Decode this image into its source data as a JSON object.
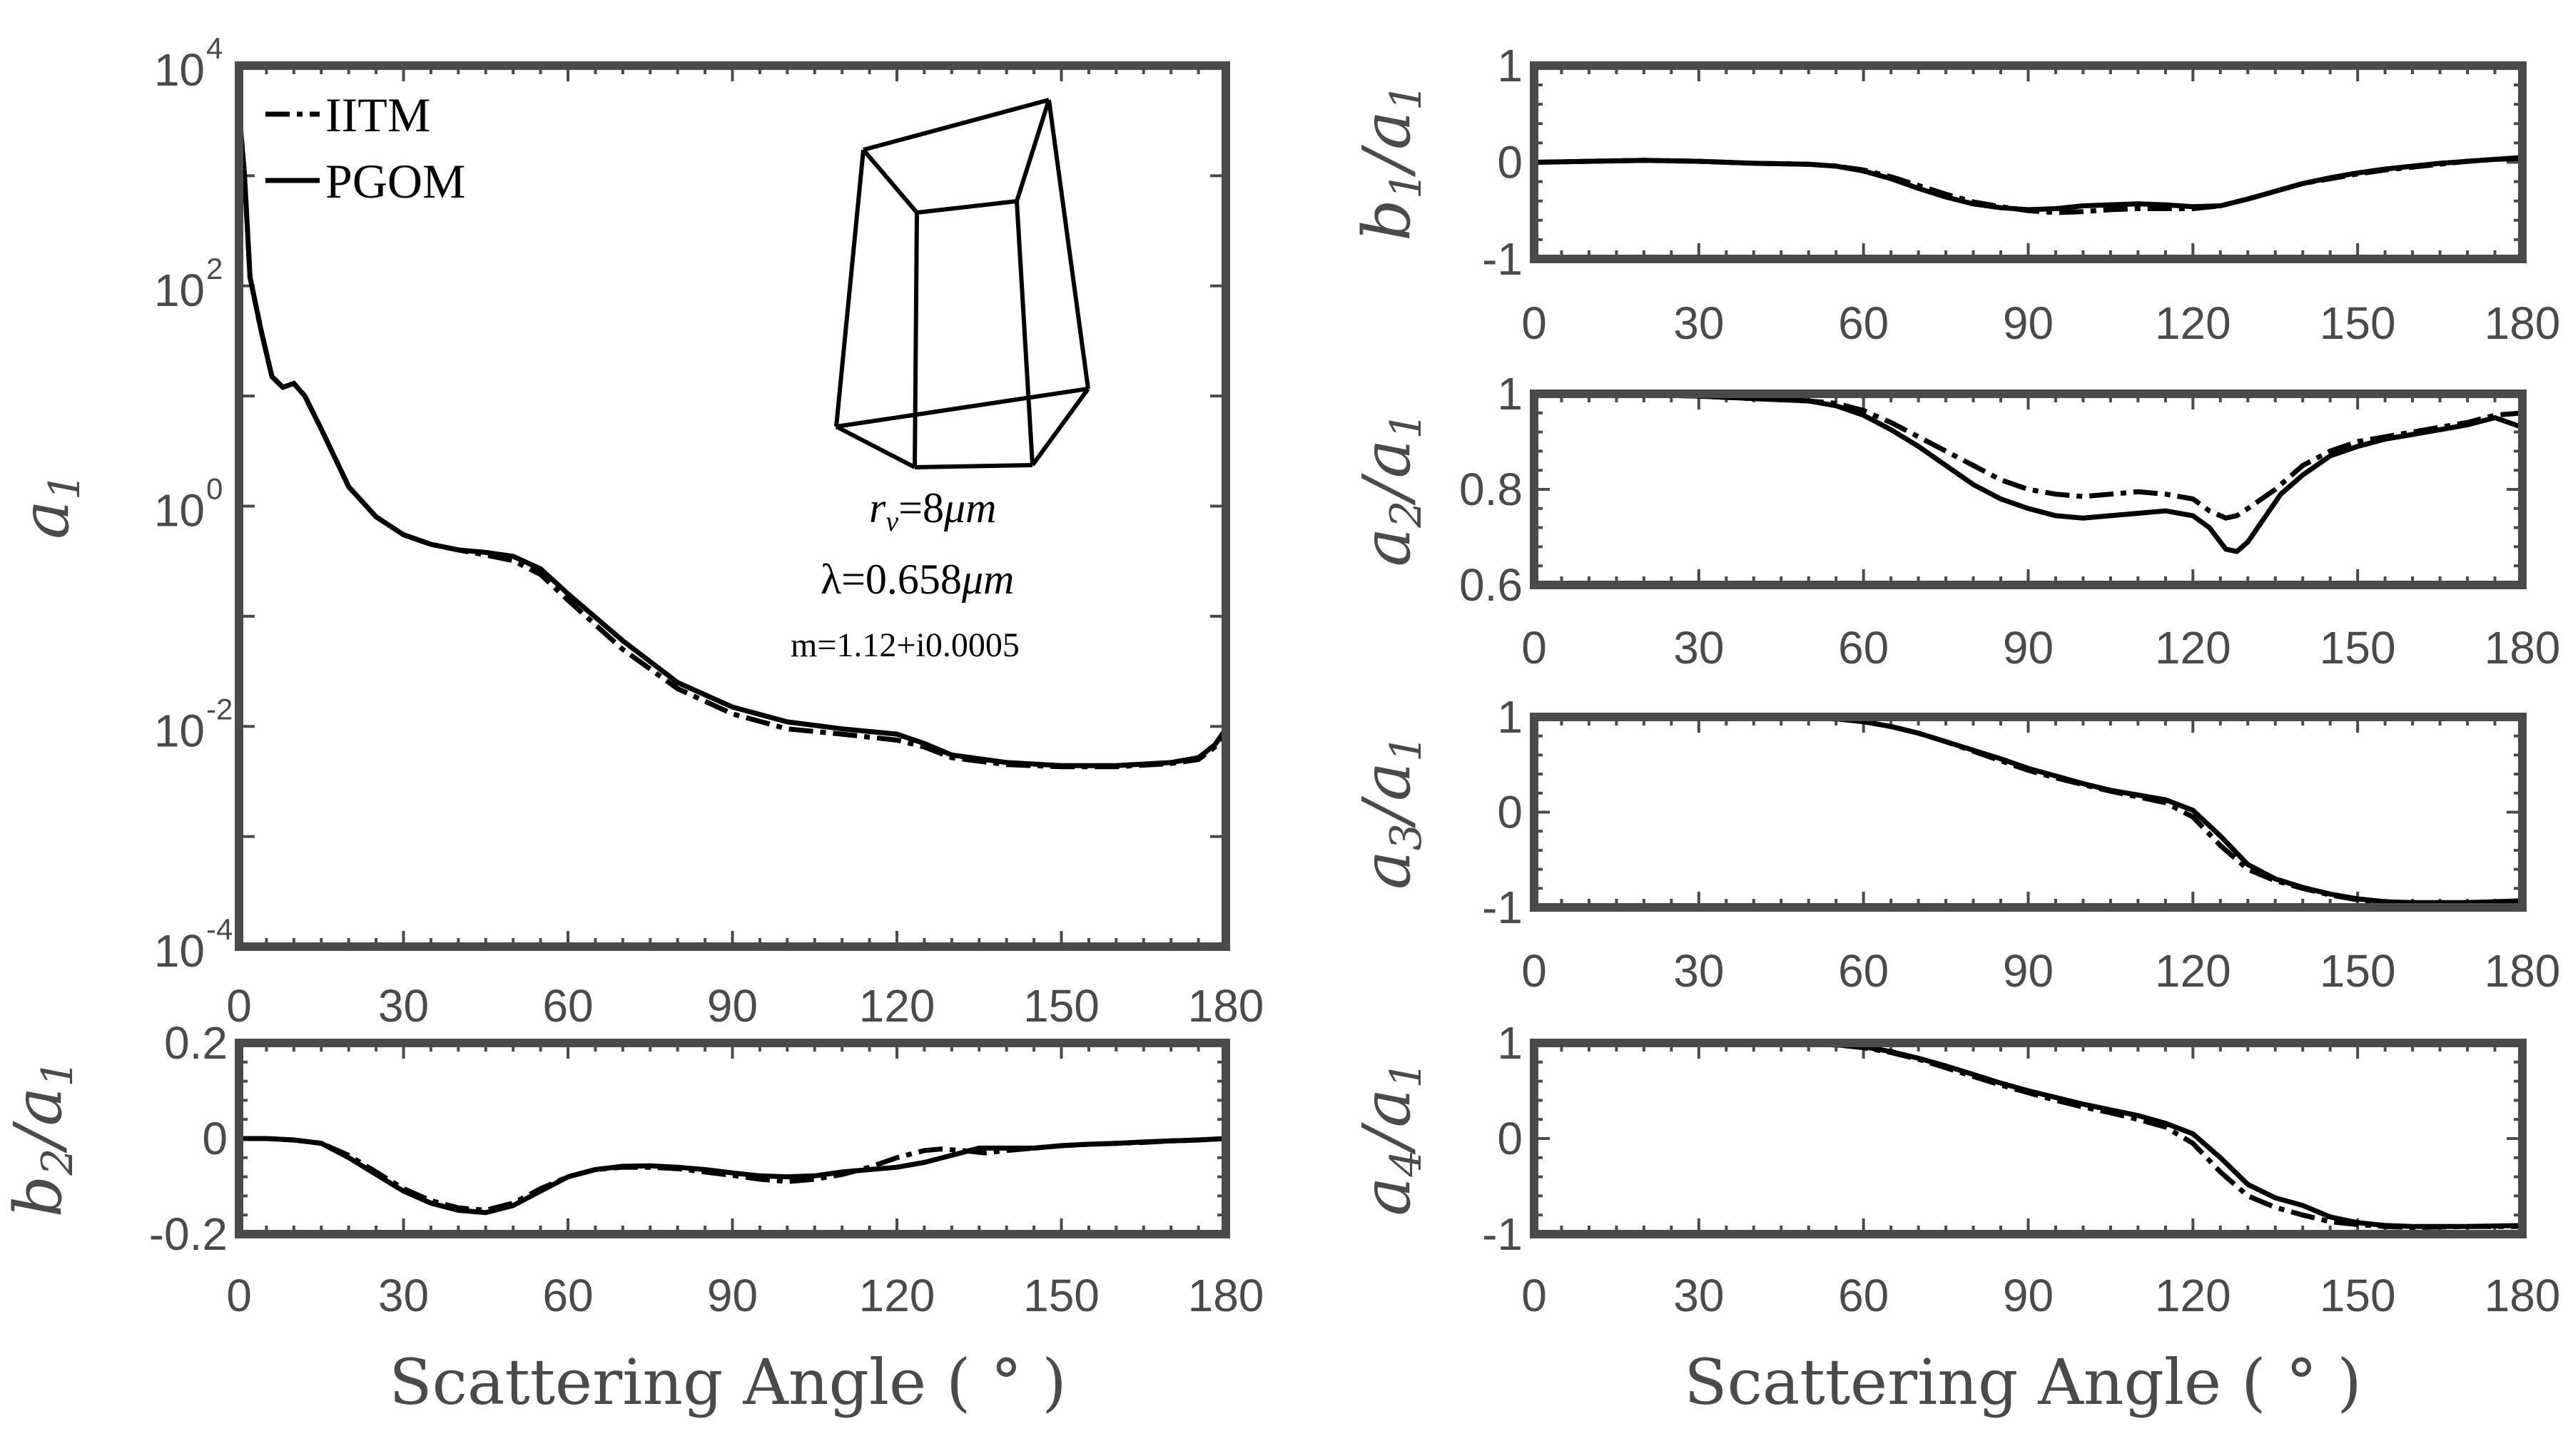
{
  "chart_data": [
    {
      "id": "a1",
      "type": "line",
      "scale": "log",
      "ylabel_main": "a",
      "ylabel_sub": "1",
      "xlim": [
        0,
        180
      ],
      "ylim": [
        0.0001,
        10000
      ],
      "xticks": [
        0,
        30,
        60,
        90,
        120,
        150,
        180
      ],
      "ytick_labels": [
        {
          "base": "10",
          "exp": "4",
          "value": 10000
        },
        {
          "base": "10",
          "exp": "2",
          "value": 100
        },
        {
          "base": "10",
          "exp": "0",
          "value": 1
        },
        {
          "base": "10",
          "exp": "-2",
          "value": 0.01
        },
        {
          "base": "10",
          "exp": "-4",
          "value": 0.0001
        }
      ],
      "legend": [
        {
          "name": "IITM",
          "style": "dash-dot"
        },
        {
          "name": "PGOM",
          "style": "solid"
        }
      ],
      "annotations": {
        "radius": "=8",
        "radius_unit": "μm",
        "wavelength": "λ=0.658",
        "wavelength_unit": "μm",
        "refractive_index": "m=1.12+i0.0005"
      },
      "series": [
        {
          "name": "IITM",
          "x": [
            0,
            1,
            2,
            4,
            6,
            8,
            10,
            12,
            15,
            20,
            25,
            30,
            35,
            40,
            45,
            50,
            55,
            60,
            70,
            80,
            90,
            100,
            110,
            120,
            125,
            130,
            140,
            150,
            160,
            170,
            175,
            178,
            180
          ],
          "y": [
            4000,
            1000,
            120,
            40,
            15,
            12,
            13,
            10,
            5,
            1.5,
            0.8,
            0.55,
            0.45,
            0.4,
            0.36,
            0.32,
            0.24,
            0.14,
            0.05,
            0.022,
            0.013,
            0.0095,
            0.0085,
            0.0075,
            0.0065,
            0.0052,
            0.0045,
            0.0043,
            0.0043,
            0.0046,
            0.005,
            0.0065,
            0.009
          ]
        },
        {
          "name": "PGOM",
          "x": [
            0,
            1,
            2,
            4,
            6,
            8,
            10,
            12,
            15,
            20,
            25,
            30,
            35,
            40,
            45,
            50,
            55,
            60,
            70,
            80,
            90,
            100,
            110,
            120,
            125,
            130,
            140,
            150,
            160,
            170,
            175,
            178,
            180
          ],
          "y": [
            4000,
            1000,
            120,
            40,
            15,
            12,
            13,
            10,
            5,
            1.5,
            0.8,
            0.55,
            0.45,
            0.4,
            0.38,
            0.35,
            0.27,
            0.16,
            0.06,
            0.025,
            0.015,
            0.011,
            0.0095,
            0.0085,
            0.007,
            0.0055,
            0.0047,
            0.0044,
            0.0044,
            0.0047,
            0.0052,
            0.0068,
            0.0095
          ]
        }
      ]
    },
    {
      "id": "b2",
      "type": "line",
      "ylabel_main": "b",
      "ylabel_sub": "2",
      "ylabel_sub2": "1",
      "xlim": [
        0,
        180
      ],
      "ylim": [
        -0.2,
        0.2
      ],
      "xticks": [
        0,
        30,
        60,
        90,
        120,
        150,
        180
      ],
      "yticks": [
        0.2,
        0,
        -0.2
      ],
      "ytick_labels": [
        "0.2",
        "0",
        "-0.2"
      ],
      "xlabel": "Scattering Angle ( ° )",
      "series": [
        {
          "name": "IITM",
          "x": [
            0,
            5,
            10,
            15,
            20,
            25,
            30,
            35,
            40,
            45,
            50,
            55,
            60,
            65,
            70,
            75,
            80,
            85,
            90,
            95,
            100,
            105,
            110,
            115,
            120,
            125,
            128,
            132,
            136,
            140,
            145,
            150,
            155,
            160,
            165,
            170,
            175,
            180
          ],
          "y": [
            0,
            0,
            -0.003,
            -0.01,
            -0.035,
            -0.07,
            -0.105,
            -0.13,
            -0.145,
            -0.15,
            -0.135,
            -0.105,
            -0.08,
            -0.065,
            -0.06,
            -0.06,
            -0.063,
            -0.07,
            -0.077,
            -0.085,
            -0.09,
            -0.085,
            -0.075,
            -0.06,
            -0.04,
            -0.025,
            -0.022,
            -0.025,
            -0.03,
            -0.025,
            -0.02,
            -0.015,
            -0.012,
            -0.01,
            -0.008,
            -0.005,
            -0.003,
            0
          ]
        },
        {
          "name": "PGOM",
          "x": [
            0,
            5,
            10,
            15,
            20,
            25,
            30,
            35,
            40,
            45,
            50,
            55,
            60,
            65,
            70,
            75,
            80,
            85,
            90,
            95,
            100,
            105,
            110,
            115,
            120,
            125,
            130,
            135,
            140,
            145,
            150,
            155,
            160,
            165,
            170,
            175,
            180
          ],
          "y": [
            0,
            0,
            -0.003,
            -0.01,
            -0.04,
            -0.075,
            -0.11,
            -0.135,
            -0.15,
            -0.155,
            -0.14,
            -0.11,
            -0.08,
            -0.065,
            -0.058,
            -0.057,
            -0.06,
            -0.065,
            -0.072,
            -0.078,
            -0.08,
            -0.078,
            -0.07,
            -0.065,
            -0.06,
            -0.05,
            -0.035,
            -0.02,
            -0.02,
            -0.02,
            -0.015,
            -0.012,
            -0.01,
            -0.007,
            -0.005,
            -0.003,
            0
          ]
        }
      ]
    },
    {
      "id": "b1",
      "type": "line",
      "ylabel_main": "b",
      "ylabel_sub": "1",
      "ylabel_sub2": "1",
      "xlim": [
        0,
        180
      ],
      "ylim": [
        -1,
        1
      ],
      "xticks": [
        0,
        30,
        60,
        90,
        120,
        150,
        180
      ],
      "yticks": [
        1,
        0,
        -1
      ],
      "ytick_labels": [
        "1",
        "0",
        "-1"
      ],
      "series": [
        {
          "name": "IITM",
          "x": [
            0,
            10,
            20,
            30,
            40,
            50,
            55,
            60,
            65,
            70,
            75,
            80,
            85,
            90,
            95,
            100,
            105,
            110,
            115,
            120,
            125,
            130,
            135,
            140,
            145,
            150,
            155,
            160,
            165,
            170,
            175,
            180
          ],
          "y": [
            0,
            0.01,
            0.02,
            0.01,
            -0.01,
            -0.02,
            -0.04,
            -0.08,
            -0.15,
            -0.24,
            -0.33,
            -0.41,
            -0.46,
            -0.5,
            -0.52,
            -0.51,
            -0.49,
            -0.48,
            -0.48,
            -0.48,
            -0.45,
            -0.38,
            -0.3,
            -0.22,
            -0.17,
            -0.12,
            -0.08,
            -0.05,
            -0.02,
            0.01,
            0.03,
            0.05
          ]
        },
        {
          "name": "PGOM",
          "x": [
            0,
            10,
            20,
            30,
            40,
            50,
            55,
            60,
            65,
            70,
            75,
            80,
            85,
            90,
            95,
            100,
            105,
            110,
            115,
            120,
            125,
            130,
            135,
            140,
            145,
            150,
            155,
            160,
            165,
            170,
            175,
            180
          ],
          "y": [
            0,
            0.01,
            0.02,
            0.01,
            -0.01,
            -0.02,
            -0.04,
            -0.09,
            -0.17,
            -0.27,
            -0.36,
            -0.43,
            -0.47,
            -0.49,
            -0.48,
            -0.45,
            -0.44,
            -0.43,
            -0.44,
            -0.46,
            -0.45,
            -0.38,
            -0.3,
            -0.22,
            -0.16,
            -0.11,
            -0.07,
            -0.04,
            -0.01,
            0.01,
            0.03,
            0.04
          ]
        }
      ]
    },
    {
      "id": "a2",
      "type": "line",
      "ylabel_main": "a",
      "ylabel_sub": "2",
      "ylabel_sub2": "1",
      "xlim": [
        0,
        180
      ],
      "ylim": [
        0.6,
        1
      ],
      "xticks": [
        0,
        30,
        60,
        90,
        120,
        150,
        180
      ],
      "yticks": [
        1,
        0.8,
        0.6
      ],
      "ytick_labels": [
        "1",
        "0.8",
        "0.6"
      ],
      "series": [
        {
          "name": "IITM",
          "x": [
            0,
            10,
            20,
            30,
            40,
            50,
            55,
            60,
            65,
            70,
            75,
            80,
            85,
            90,
            95,
            100,
            105,
            110,
            115,
            120,
            123,
            126,
            128,
            130,
            135,
            140,
            145,
            150,
            155,
            160,
            165,
            170,
            175,
            180
          ],
          "y": [
            1,
            1,
            0.998,
            0.995,
            0.99,
            0.985,
            0.98,
            0.965,
            0.94,
            0.91,
            0.88,
            0.85,
            0.82,
            0.8,
            0.79,
            0.785,
            0.79,
            0.795,
            0.79,
            0.78,
            0.755,
            0.74,
            0.745,
            0.76,
            0.8,
            0.85,
            0.88,
            0.9,
            0.91,
            0.92,
            0.93,
            0.94,
            0.955,
            0.96
          ]
        },
        {
          "name": "PGOM",
          "x": [
            0,
            10,
            20,
            30,
            40,
            50,
            55,
            60,
            65,
            70,
            75,
            80,
            85,
            90,
            95,
            100,
            105,
            110,
            115,
            120,
            123,
            126,
            128,
            130,
            133,
            136,
            140,
            145,
            150,
            155,
            160,
            165,
            170,
            175,
            180
          ],
          "y": [
            1,
            1,
            0.998,
            0.995,
            0.99,
            0.985,
            0.975,
            0.955,
            0.925,
            0.89,
            0.85,
            0.81,
            0.78,
            0.76,
            0.745,
            0.74,
            0.745,
            0.75,
            0.755,
            0.745,
            0.72,
            0.675,
            0.67,
            0.69,
            0.74,
            0.79,
            0.83,
            0.87,
            0.89,
            0.905,
            0.915,
            0.925,
            0.935,
            0.95,
            0.93
          ]
        }
      ]
    },
    {
      "id": "a3",
      "type": "line",
      "ylabel_main": "a",
      "ylabel_sub": "3",
      "ylabel_sub2": "1",
      "xlim": [
        0,
        180
      ],
      "ylim": [
        -1,
        1
      ],
      "xticks": [
        0,
        30,
        60,
        90,
        120,
        150,
        180
      ],
      "yticks": [
        1,
        0,
        -1
      ],
      "ytick_labels": [
        "1",
        "0",
        "-1"
      ],
      "series": [
        {
          "name": "IITM",
          "x": [
            0,
            20,
            40,
            55,
            60,
            65,
            70,
            75,
            80,
            85,
            90,
            95,
            100,
            105,
            110,
            115,
            120,
            125,
            130,
            135,
            140,
            145,
            150,
            155,
            160,
            170,
            180
          ],
          "y": [
            1,
            1,
            1,
            0.98,
            0.95,
            0.9,
            0.83,
            0.74,
            0.64,
            0.54,
            0.44,
            0.36,
            0.29,
            0.22,
            0.16,
            0.1,
            -0.05,
            -0.35,
            -0.6,
            -0.72,
            -0.8,
            -0.87,
            -0.92,
            -0.95,
            -0.96,
            -0.95,
            -0.94
          ]
        },
        {
          "name": "PGOM",
          "x": [
            0,
            20,
            40,
            55,
            60,
            65,
            70,
            75,
            80,
            85,
            90,
            95,
            100,
            105,
            110,
            115,
            120,
            125,
            130,
            135,
            140,
            145,
            150,
            155,
            160,
            170,
            180
          ],
          "y": [
            1,
            1,
            1,
            0.98,
            0.95,
            0.9,
            0.83,
            0.74,
            0.65,
            0.56,
            0.46,
            0.38,
            0.3,
            0.23,
            0.18,
            0.13,
            0.02,
            -0.25,
            -0.55,
            -0.7,
            -0.79,
            -0.86,
            -0.91,
            -0.94,
            -0.95,
            -0.95,
            -0.93
          ]
        }
      ]
    },
    {
      "id": "a4",
      "type": "line",
      "ylabel_main": "a",
      "ylabel_sub": "4",
      "ylabel_sub2": "1",
      "xlim": [
        0,
        180
      ],
      "ylim": [
        -1,
        1
      ],
      "xticks": [
        0,
        30,
        60,
        90,
        120,
        150,
        180
      ],
      "yticks": [
        1,
        0,
        -1
      ],
      "ytick_labels": [
        "1",
        "0",
        "-1"
      ],
      "xlabel": "Scattering Angle ( ° )",
      "series": [
        {
          "name": "IITM",
          "x": [
            0,
            20,
            40,
            55,
            60,
            65,
            70,
            75,
            80,
            85,
            90,
            95,
            100,
            105,
            110,
            115,
            120,
            125,
            130,
            135,
            140,
            145,
            150,
            155,
            160,
            170,
            180
          ],
          "y": [
            1,
            1,
            1,
            0.98,
            0.95,
            0.9,
            0.83,
            0.74,
            0.65,
            0.56,
            0.48,
            0.4,
            0.33,
            0.27,
            0.2,
            0.12,
            -0.05,
            -0.35,
            -0.6,
            -0.72,
            -0.8,
            -0.87,
            -0.9,
            -0.92,
            -0.93,
            -0.92,
            -0.92
          ]
        },
        {
          "name": "PGOM",
          "x": [
            0,
            20,
            40,
            55,
            60,
            65,
            70,
            75,
            80,
            85,
            90,
            95,
            100,
            105,
            110,
            115,
            120,
            125,
            130,
            135,
            140,
            145,
            150,
            155,
            160,
            170,
            180
          ],
          "y": [
            1,
            1,
            1,
            0.98,
            0.96,
            0.91,
            0.84,
            0.76,
            0.67,
            0.58,
            0.5,
            0.43,
            0.36,
            0.3,
            0.24,
            0.16,
            0.05,
            -0.2,
            -0.48,
            -0.62,
            -0.7,
            -0.82,
            -0.88,
            -0.91,
            -0.92,
            -0.92,
            -0.91
          ]
        }
      ]
    }
  ]
}
